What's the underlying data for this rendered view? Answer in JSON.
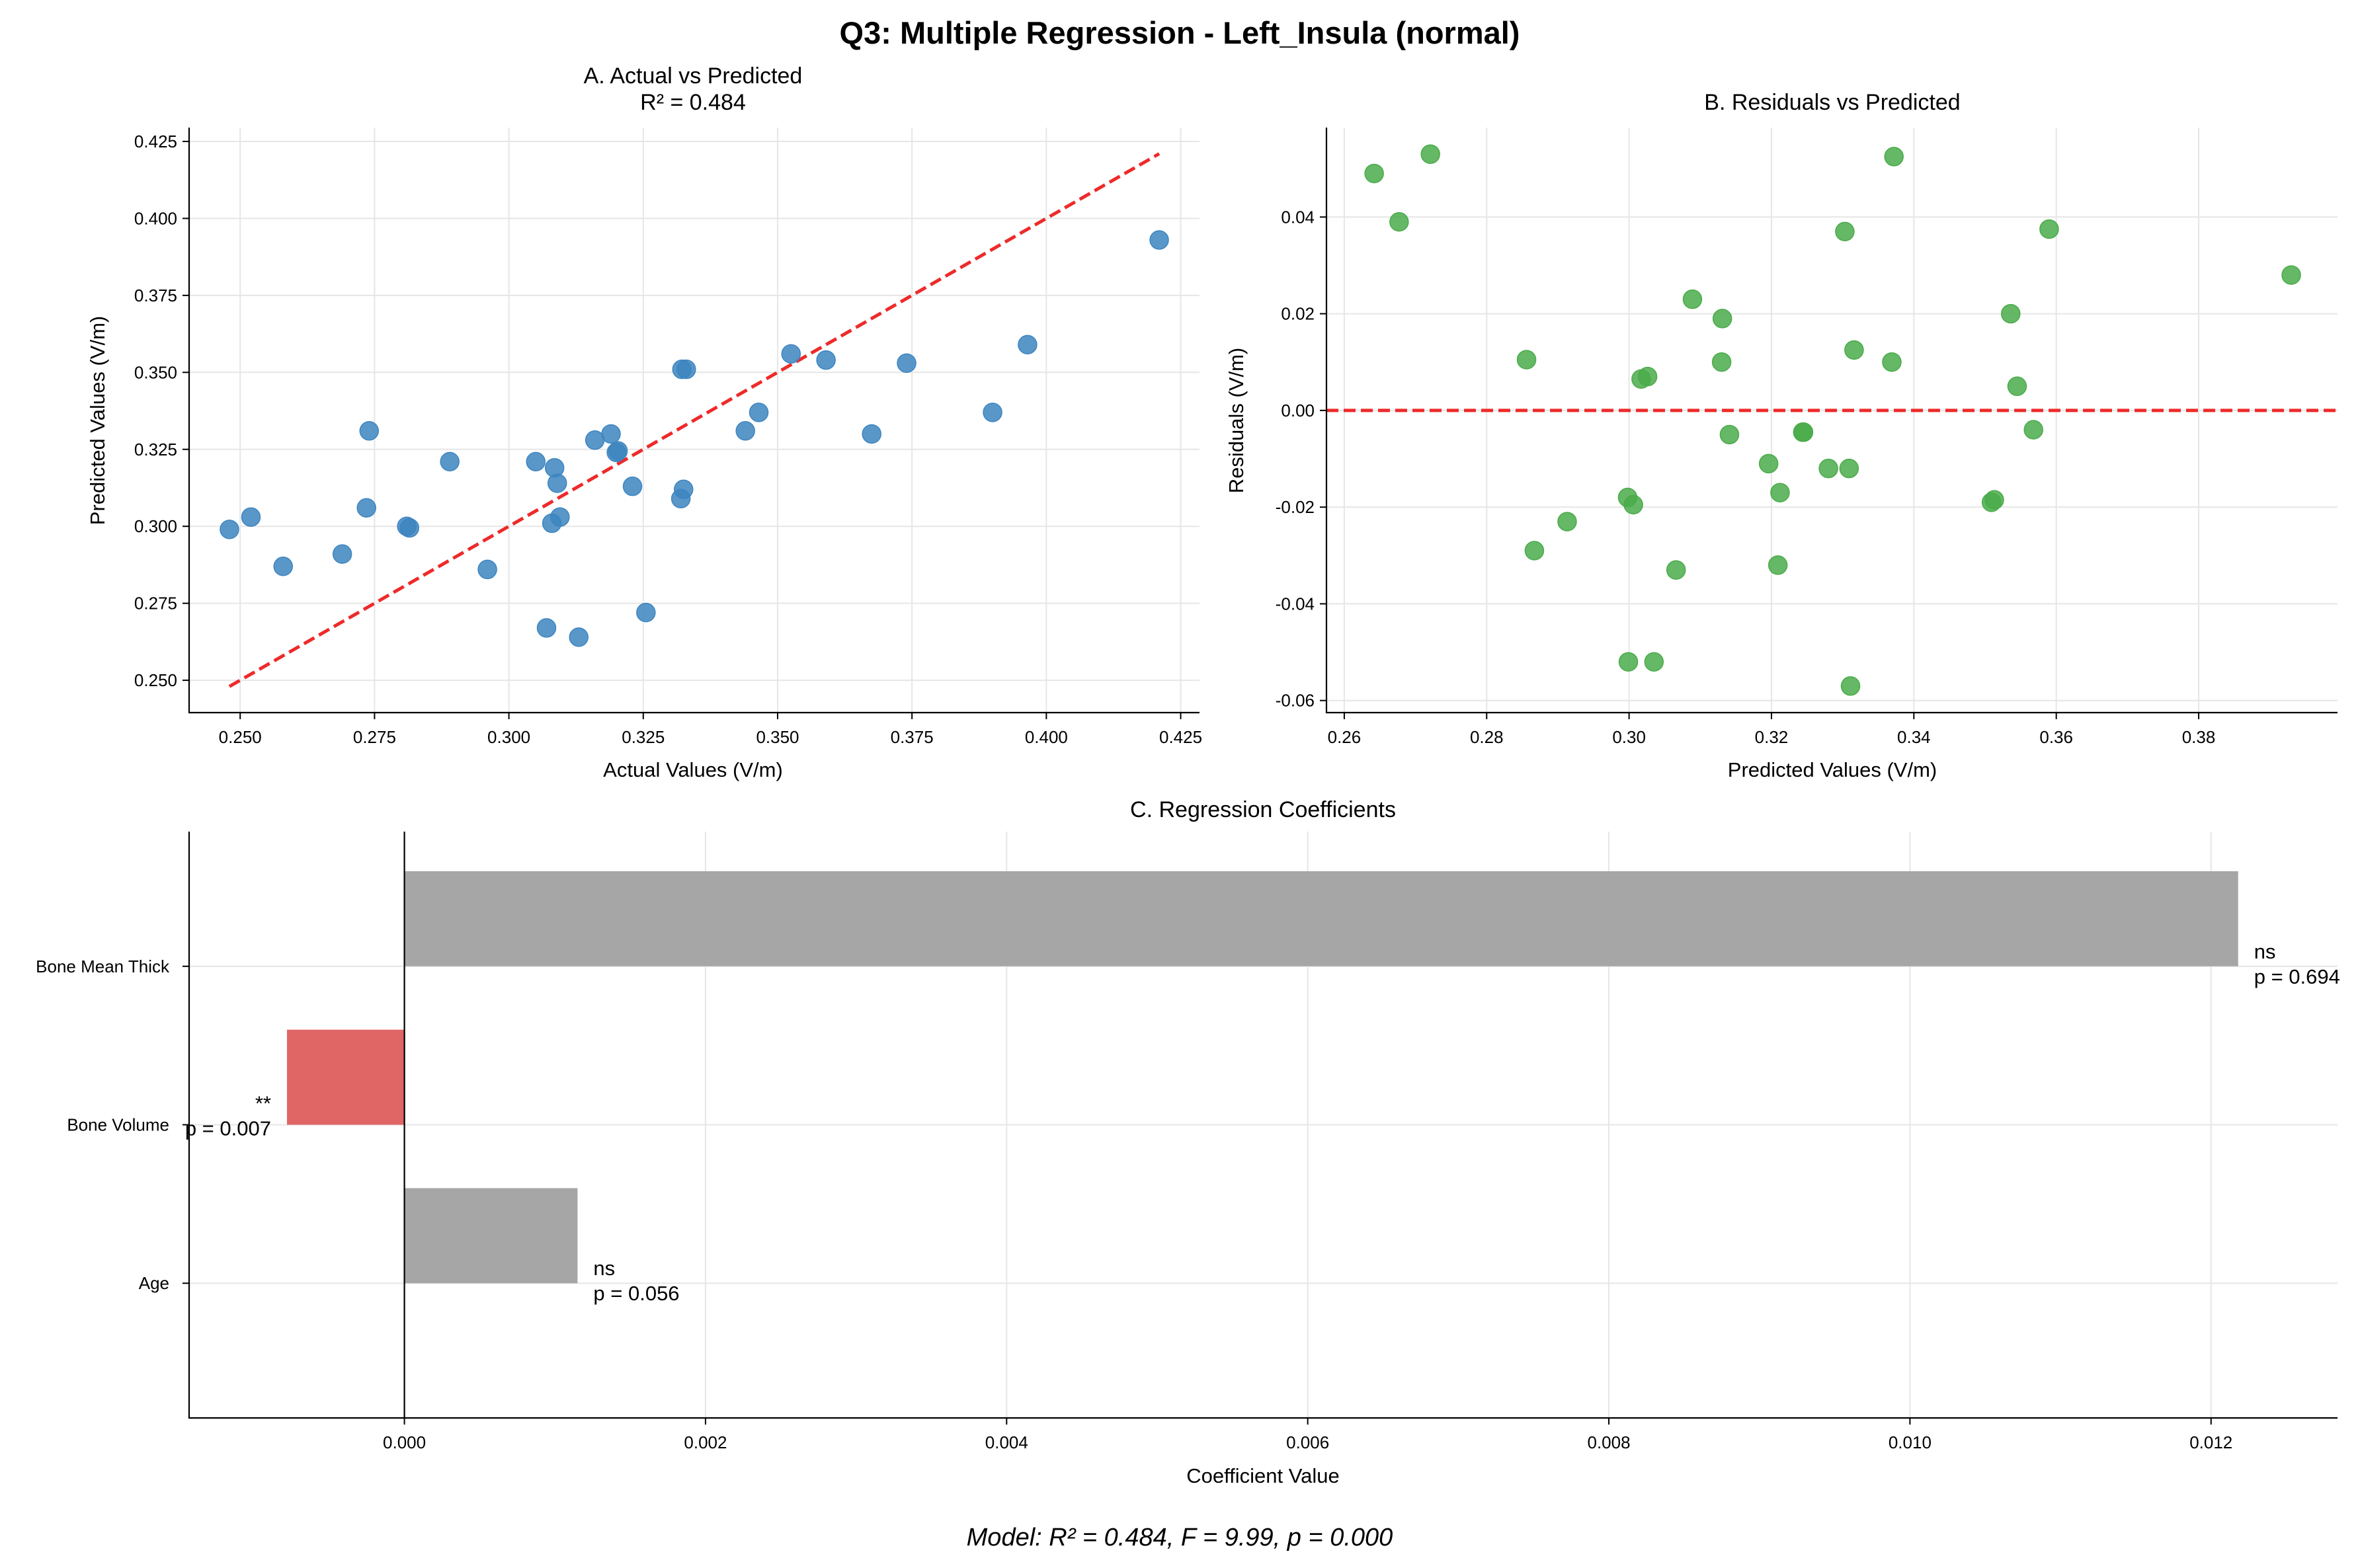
{
  "figure": {
    "title": "Q3: Multiple Regression - Left_Insula (normal)",
    "footer": "Model: R² = 0.484, F = 9.99, p = 0.000"
  },
  "chart_data": [
    {
      "type": "scatter",
      "title": "A. Actual vs Predicted",
      "subtitle": "R² = 0.484",
      "xlabel": "Actual Values (V/m)",
      "ylabel": "Predicted Values (V/m)",
      "xlim": [
        0.2405,
        0.4285
      ],
      "ylim": [
        0.2395,
        0.4295
      ],
      "xticks": [
        0.25,
        0.275,
        0.3,
        0.325,
        0.35,
        0.375,
        0.4,
        0.425
      ],
      "yticks": [
        0.25,
        0.275,
        0.3,
        0.325,
        0.35,
        0.375,
        0.4,
        0.425
      ],
      "tick_format": 3,
      "grid": true,
      "point_color": "#3d85c0",
      "line_color": "#ee2a2a",
      "reference_line": {
        "style": "dashed",
        "from": [
          0.248,
          0.248
        ],
        "to": [
          0.421,
          0.421
        ]
      },
      "points": [
        [
          0.248,
          0.299
        ],
        [
          0.252,
          0.303
        ],
        [
          0.258,
          0.287
        ],
        [
          0.269,
          0.291
        ],
        [
          0.2735,
          0.306
        ],
        [
          0.274,
          0.331
        ],
        [
          0.281,
          0.3
        ],
        [
          0.2815,
          0.2995
        ],
        [
          0.289,
          0.321
        ],
        [
          0.296,
          0.286
        ],
        [
          0.305,
          0.321
        ],
        [
          0.307,
          0.267
        ],
        [
          0.308,
          0.301
        ],
        [
          0.3085,
          0.319
        ],
        [
          0.309,
          0.314
        ],
        [
          0.3095,
          0.303
        ],
        [
          0.313,
          0.264
        ],
        [
          0.316,
          0.328
        ],
        [
          0.319,
          0.33
        ],
        [
          0.32,
          0.324
        ],
        [
          0.3203,
          0.3245
        ],
        [
          0.323,
          0.313
        ],
        [
          0.3255,
          0.272
        ],
        [
          0.332,
          0.309
        ],
        [
          0.3322,
          0.351
        ],
        [
          0.3325,
          0.312
        ],
        [
          0.333,
          0.351
        ],
        [
          0.344,
          0.331
        ],
        [
          0.3465,
          0.337
        ],
        [
          0.3525,
          0.356
        ],
        [
          0.359,
          0.354
        ],
        [
          0.3675,
          0.33
        ],
        [
          0.374,
          0.353
        ],
        [
          0.39,
          0.337
        ],
        [
          0.3965,
          0.359
        ],
        [
          0.421,
          0.393
        ]
      ]
    },
    {
      "type": "scatter",
      "title": "B. Residuals vs Predicted",
      "xlabel": "Predicted Values (V/m)",
      "ylabel": "Residuals (V/m)",
      "xlim": [
        0.2575,
        0.3995
      ],
      "ylim": [
        -0.0625,
        0.0585
      ],
      "xticks": [
        0.26,
        0.28,
        0.3,
        0.32,
        0.34,
        0.36,
        0.38
      ],
      "yticks": [
        -0.06,
        -0.04,
        -0.02,
        0.0,
        0.02,
        0.04
      ],
      "tick_format": 2,
      "grid": true,
      "point_color": "#4aab4a",
      "line_color": "#ee2a2a",
      "reference_line": {
        "style": "dashed",
        "y": 0.0
      },
      "points": [
        [
          0.2642,
          0.049
        ],
        [
          0.2677,
          0.039
        ],
        [
          0.2721,
          0.053
        ],
        [
          0.2856,
          0.0105
        ],
        [
          0.2867,
          -0.029
        ],
        [
          0.2913,
          -0.023
        ],
        [
          0.2998,
          -0.018
        ],
        [
          0.2999,
          -0.052
        ],
        [
          0.3006,
          -0.0195
        ],
        [
          0.3017,
          0.0065
        ],
        [
          0.3026,
          0.007
        ],
        [
          0.3035,
          -0.052
        ],
        [
          0.3066,
          -0.033
        ],
        [
          0.3089,
          0.023
        ],
        [
          0.313,
          0.01
        ],
        [
          0.3131,
          0.019
        ],
        [
          0.3141,
          -0.005
        ],
        [
          0.3196,
          -0.011
        ],
        [
          0.3209,
          -0.032
        ],
        [
          0.3212,
          -0.017
        ],
        [
          0.3244,
          -0.0045
        ],
        [
          0.3245,
          -0.0045
        ],
        [
          0.328,
          -0.012
        ],
        [
          0.3303,
          0.037
        ],
        [
          0.3309,
          -0.012
        ],
        [
          0.3311,
          -0.057
        ],
        [
          0.3316,
          0.0125
        ],
        [
          0.3369,
          0.01
        ],
        [
          0.3372,
          0.0525
        ],
        [
          0.3509,
          -0.019
        ],
        [
          0.3513,
          -0.0185
        ],
        [
          0.3536,
          0.02
        ],
        [
          0.3545,
          0.005
        ],
        [
          0.3568,
          -0.004
        ],
        [
          0.359,
          0.0375
        ],
        [
          0.393,
          0.028
        ]
      ]
    },
    {
      "type": "bar",
      "orientation": "horizontal",
      "title": "C. Regression Coefficients",
      "xlabel": "Coefficient Value",
      "xlim": [
        -0.00143,
        0.01284
      ],
      "xticks": [
        0.0,
        0.002,
        0.004,
        0.006,
        0.008,
        0.01,
        0.012
      ],
      "tick_format": 3,
      "grid": true,
      "categories": [
        "Age",
        "Bone Volume",
        "Bone Mean Thick"
      ],
      "bars": [
        {
          "label": "Age",
          "value": 0.00115,
          "significance": "ns",
          "p_label": "p = 0.056",
          "color": "#a6a6a6"
        },
        {
          "label": "Bone Volume",
          "value": -0.00078,
          "significance": "**",
          "p_label": "p = 0.007",
          "color": "#e06666"
        },
        {
          "label": "Bone Mean Thick",
          "value": 0.01218,
          "significance": "ns",
          "p_label": "p = 0.694",
          "color": "#a6a6a6"
        }
      ]
    }
  ]
}
